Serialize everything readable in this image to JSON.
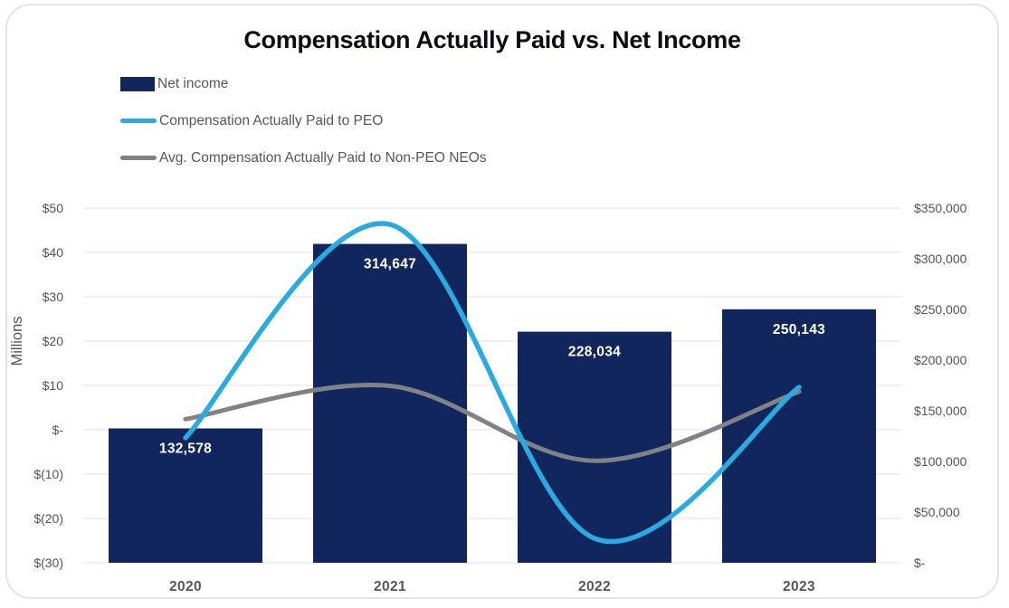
{
  "chart_data": {
    "type": "combo-bar-line",
    "title": "Compensation Actually Paid vs. Net Income",
    "categories": [
      "2020",
      "2021",
      "2022",
      "2023"
    ],
    "series": [
      {
        "name": "Net income",
        "type": "bar",
        "axis": "right",
        "color": "#12265E",
        "values": [
          132578,
          314647,
          228034,
          250143
        ],
        "data_labels": [
          "132,578",
          "314,647",
          "228,034",
          "250,143"
        ],
        "data_label_color": "#FFFFFF"
      },
      {
        "name": "Compensation Actually Paid to PEO",
        "type": "line",
        "axis": "left",
        "color": "#29ABE2",
        "stroke_width": 5.5,
        "values": [
          -1.8,
          46.3,
          -24.5,
          9.6
        ],
        "unit": "USD millions (estimated from gridlines)"
      },
      {
        "name": "Avg. Compensation Actually Paid to Non-PEO NEOs",
        "type": "line",
        "axis": "left",
        "color": "#808285",
        "stroke_width": 5,
        "values": [
          2.4,
          9.9,
          -7.0,
          8.6
        ],
        "unit": "USD millions (estimated from gridlines)"
      }
    ],
    "left_axis": {
      "title": "Millions",
      "min": -30,
      "max": 50,
      "tick_step": 10,
      "tick_labels": [
        "$50",
        "$40",
        "$30",
        "$20",
        "$10",
        "$-",
        "$(10)",
        "$(20)",
        "$(30)"
      ]
    },
    "right_axis": {
      "min": 0,
      "max": 350000,
      "tick_step": 50000,
      "tick_labels": [
        "$350,000",
        "$300,000",
        "$250,000",
        "$200,000",
        "$150,000",
        "$100,000",
        "$50,000",
        "$-"
      ]
    },
    "grid": true,
    "gridline_color": "#e7e7ea",
    "legend_position": "top-left",
    "tick_label_color": "#50535c",
    "category_label_color": "#54565c"
  }
}
